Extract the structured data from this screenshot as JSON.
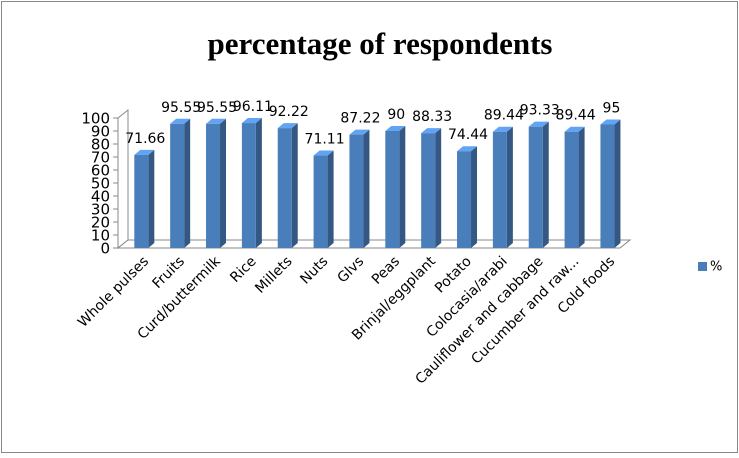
{
  "chart_data": {
    "type": "bar3d",
    "title": "percentage of respondents",
    "categories": [
      "Whole pulses",
      "Fruits",
      "Curd/buttermilk",
      "Rice",
      "Millets",
      "Nuts",
      "Glvs",
      "Peas",
      "Brinjal/eggplant",
      "Potato",
      "Colocasia/arabi",
      "Cauliflower and cabbage",
      "Cucumber and raw...",
      "Cold foods"
    ],
    "series": [
      {
        "name": "%",
        "color": "#4a7ebb",
        "values": [
          71.66,
          95.55,
          95.55,
          96.11,
          92.22,
          71.11,
          87.22,
          90,
          88.33,
          74.44,
          89.44,
          93.33,
          89.44,
          95
        ]
      }
    ],
    "ylim": [
      0,
      100
    ],
    "yticks": [
      0,
      10,
      20,
      30,
      40,
      50,
      60,
      70,
      80,
      90,
      100
    ],
    "legend": "right"
  }
}
